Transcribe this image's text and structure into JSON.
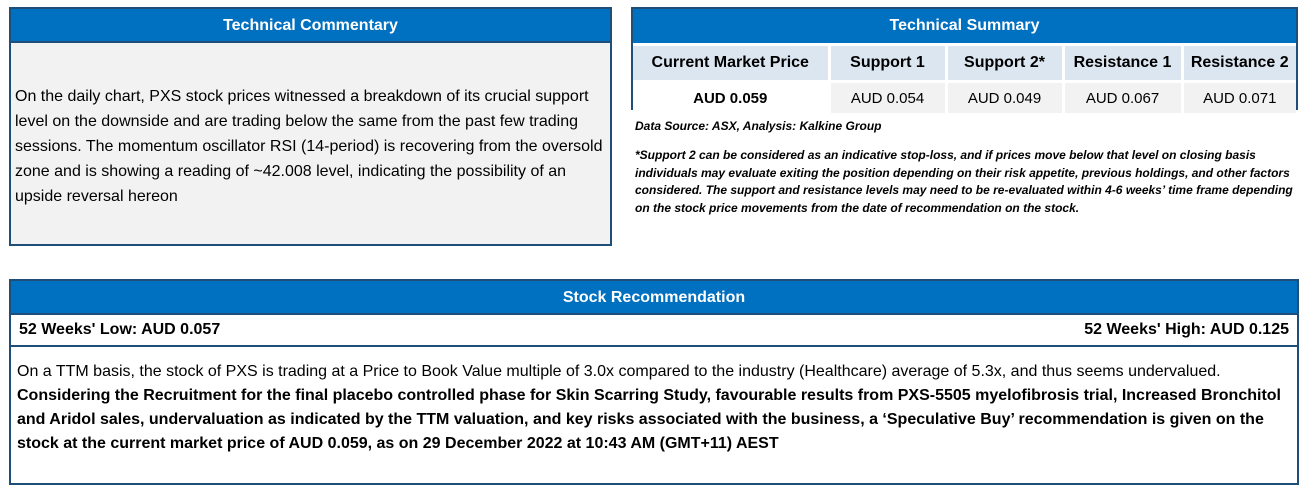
{
  "commentary": {
    "title": "Technical Commentary",
    "text": "On the daily chart, PXS stock prices witnessed a breakdown of its crucial support level on the downside and are trading below the same from the past few trading sessions. The momentum oscillator RSI (14-period) is recovering from the oversold zone and is showing a reading of ~42.008 level, indicating the possibility of an upside reversal hereon"
  },
  "summary": {
    "title": "Technical Summary",
    "headers": [
      "Current Market Price",
      "Support 1",
      "Support 2*",
      "Resistance 1",
      "Resistance 2"
    ],
    "values": [
      "AUD 0.059",
      "AUD 0.054",
      "AUD 0.049",
      "AUD 0.067",
      "AUD 0.071"
    ],
    "source": "Data Source: ASX, Analysis: Kalkine Group",
    "note": "*Support 2 can be considered as an indicative stop-loss, and if prices move below that level on closing basis individuals may evaluate exiting the position depending on their risk appetite, previous holdings, and other factors considered. The support and resistance levels may need to be re-evaluated within 4-6 weeks’ time frame depending on the stock price movements from the date of recommendation on the stock."
  },
  "recommendation": {
    "title": "Stock Recommendation",
    "low": "52 Weeks' Low: AUD 0.057",
    "high": "52 Weeks' High: AUD 0.125",
    "text_plain": "On a TTM basis, the stock of PXS is trading at a Price to Book Value multiple of 3.0x compared to the industry (Healthcare) average of 5.3x, and thus seems undervalued.",
    "text_bold": "Considering the Recruitment for the final placebo controlled phase for Skin Scarring Study, favourable results from PXS-5505 myelofibrosis trial, Increased Bronchitol and Aridol sales, undervaluation as indicated by the TTM valuation, and key risks associated with the business, a ‘Speculative Buy’ recommendation is given on the stock at the current market price of AUD 0.059, as on 29 December 2022 at 10:43 AM (GMT+11) AEST"
  }
}
